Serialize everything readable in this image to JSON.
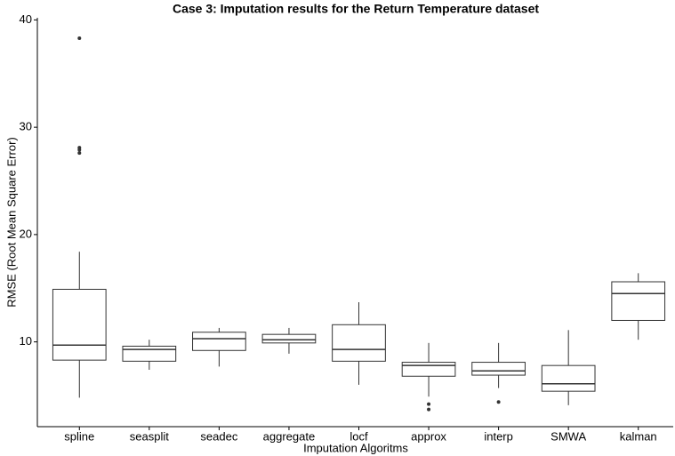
{
  "chart_data": {
    "type": "box",
    "title": "Case 3: Imputation results for the Return Temperature dataset",
    "xlabel": "Imputation Algoritms",
    "ylabel": "RMSE (Root Mean Square Error)",
    "categories": [
      "spline",
      "seasplit",
      "seadec",
      "aggregate",
      "locf",
      "approx",
      "interp",
      "SMWA",
      "kalman"
    ],
    "boxes": [
      {
        "min": 4.8,
        "q1": 8.3,
        "median": 9.7,
        "q3": 14.9,
        "max": 18.4,
        "outliers": [
          38.3,
          28.1,
          27.9,
          27.6
        ]
      },
      {
        "min": 7.4,
        "q1": 8.2,
        "median": 9.3,
        "q3": 9.6,
        "max": 10.2,
        "outliers": []
      },
      {
        "min": 7.7,
        "q1": 9.2,
        "median": 10.3,
        "q3": 10.9,
        "max": 11.3,
        "outliers": []
      },
      {
        "min": 8.9,
        "q1": 9.9,
        "median": 10.2,
        "q3": 10.7,
        "max": 11.3,
        "outliers": []
      },
      {
        "min": 6.0,
        "q1": 8.2,
        "median": 9.3,
        "q3": 11.6,
        "max": 13.7,
        "outliers": []
      },
      {
        "min": 4.9,
        "q1": 6.8,
        "median": 7.8,
        "q3": 8.1,
        "max": 9.9,
        "outliers": [
          4.2,
          3.7
        ]
      },
      {
        "min": 5.7,
        "q1": 6.9,
        "median": 7.3,
        "q3": 8.1,
        "max": 9.9,
        "outliers": [
          4.4
        ]
      },
      {
        "min": 4.1,
        "q1": 5.4,
        "median": 6.1,
        "q3": 7.8,
        "max": 11.1,
        "outliers": []
      },
      {
        "min": 10.2,
        "q1": 12.0,
        "median": 14.5,
        "q3": 15.6,
        "max": 16.4,
        "outliers": []
      }
    ],
    "color": "#ffffff",
    "ylim": [
      2.1,
      40.2
    ],
    "yticks": [
      10,
      20,
      30,
      40
    ],
    "grid": false
  }
}
